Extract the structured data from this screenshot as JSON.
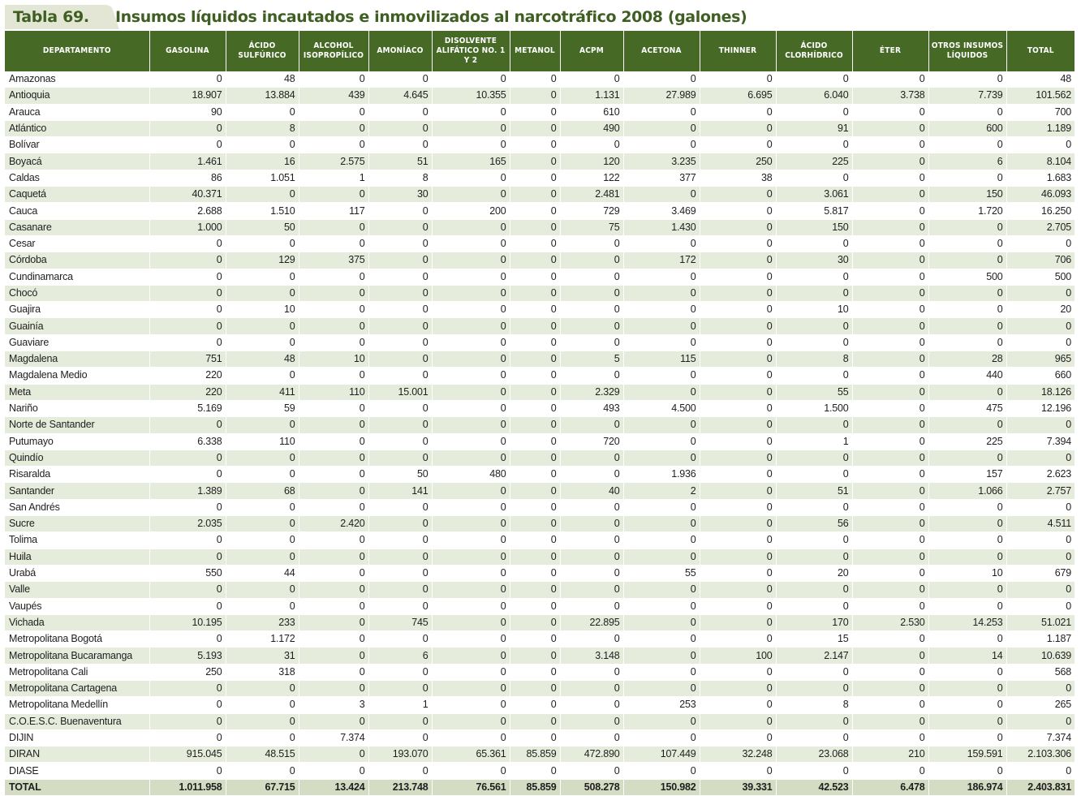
{
  "table_number": "Tabla 69.",
  "title": "Insumos líquidos incautados e inmovilizados al narcotráfico 2008 (galones)",
  "headers": [
    "DEPARTAMENTO",
    "GASOLINA",
    "ÁCIDO SULFÚRICO",
    "ALCOHOL ISOPROPÍLICO",
    "AMONÍACO",
    "DISOLVENTE ALIFÁTICO No. 1 Y 2",
    "METANOL",
    "ACPM",
    "ACETONA",
    "THINNER",
    "ÁCIDO CLORHÍDRICO",
    "ÉTER",
    "OTROS INSUMOS LÍQUIDOS",
    "TOTAL"
  ],
  "rows": [
    [
      "Amazonas",
      "0",
      "48",
      "0",
      "0",
      "0",
      "0",
      "0",
      "0",
      "0",
      "0",
      "0",
      "0",
      "48"
    ],
    [
      "Antioquia",
      "18.907",
      "13.884",
      "439",
      "4.645",
      "10.355",
      "0",
      "1.131",
      "27.989",
      "6.695",
      "6.040",
      "3.738",
      "7.739",
      "101.562"
    ],
    [
      "Arauca",
      "90",
      "0",
      "0",
      "0",
      "0",
      "0",
      "610",
      "0",
      "0",
      "0",
      "0",
      "0",
      "700"
    ],
    [
      "Atlántico",
      "0",
      "8",
      "0",
      "0",
      "0",
      "0",
      "490",
      "0",
      "0",
      "91",
      "0",
      "600",
      "1.189"
    ],
    [
      "Bolívar",
      "0",
      "0",
      "0",
      "0",
      "0",
      "0",
      "0",
      "0",
      "0",
      "0",
      "0",
      "0",
      "0"
    ],
    [
      "Boyacá",
      "1.461",
      "16",
      "2.575",
      "51",
      "165",
      "0",
      "120",
      "3.235",
      "250",
      "225",
      "0",
      "6",
      "8.104"
    ],
    [
      "Caldas",
      "86",
      "1.051",
      "1",
      "8",
      "0",
      "0",
      "122",
      "377",
      "38",
      "0",
      "0",
      "0",
      "1.683"
    ],
    [
      "Caquetá",
      "40.371",
      "0",
      "0",
      "30",
      "0",
      "0",
      "2.481",
      "0",
      "0",
      "3.061",
      "0",
      "150",
      "46.093"
    ],
    [
      "Cauca",
      "2.688",
      "1.510",
      "117",
      "0",
      "200",
      "0",
      "729",
      "3.469",
      "0",
      "5.817",
      "0",
      "1.720",
      "16.250"
    ],
    [
      "Casanare",
      "1.000",
      "50",
      "0",
      "0",
      "0",
      "0",
      "75",
      "1.430",
      "0",
      "150",
      "0",
      "0",
      "2.705"
    ],
    [
      "Cesar",
      "0",
      "0",
      "0",
      "0",
      "0",
      "0",
      "0",
      "0",
      "0",
      "0",
      "0",
      "0",
      "0"
    ],
    [
      "Córdoba",
      "0",
      "129",
      "375",
      "0",
      "0",
      "0",
      "0",
      "172",
      "0",
      "30",
      "0",
      "0",
      "706"
    ],
    [
      "Cundinamarca",
      "0",
      "0",
      "0",
      "0",
      "0",
      "0",
      "0",
      "0",
      "0",
      "0",
      "0",
      "500",
      "500"
    ],
    [
      "Chocó",
      "0",
      "0",
      "0",
      "0",
      "0",
      "0",
      "0",
      "0",
      "0",
      "0",
      "0",
      "0",
      "0"
    ],
    [
      "Guajira",
      "0",
      "10",
      "0",
      "0",
      "0",
      "0",
      "0",
      "0",
      "0",
      "10",
      "0",
      "0",
      "20"
    ],
    [
      "Guainía",
      "0",
      "0",
      "0",
      "0",
      "0",
      "0",
      "0",
      "0",
      "0",
      "0",
      "0",
      "0",
      "0"
    ],
    [
      "Guaviare",
      "0",
      "0",
      "0",
      "0",
      "0",
      "0",
      "0",
      "0",
      "0",
      "0",
      "0",
      "0",
      "0"
    ],
    [
      "Magdalena",
      "751",
      "48",
      "10",
      "0",
      "0",
      "0",
      "5",
      "115",
      "0",
      "8",
      "0",
      "28",
      "965"
    ],
    [
      "Magdalena Medio",
      "220",
      "0",
      "0",
      "0",
      "0",
      "0",
      "0",
      "0",
      "0",
      "0",
      "0",
      "440",
      "660"
    ],
    [
      "Meta",
      "220",
      "411",
      "110",
      "15.001",
      "0",
      "0",
      "2.329",
      "0",
      "0",
      "55",
      "0",
      "0",
      "18.126"
    ],
    [
      "Nariño",
      "5.169",
      "59",
      "0",
      "0",
      "0",
      "0",
      "493",
      "4.500",
      "0",
      "1.500",
      "0",
      "475",
      "12.196"
    ],
    [
      "Norte de Santander",
      "0",
      "0",
      "0",
      "0",
      "0",
      "0",
      "0",
      "0",
      "0",
      "0",
      "0",
      "0",
      "0"
    ],
    [
      "Putumayo",
      "6.338",
      "110",
      "0",
      "0",
      "0",
      "0",
      "720",
      "0",
      "0",
      "1",
      "0",
      "225",
      "7.394"
    ],
    [
      "Quindío",
      "0",
      "0",
      "0",
      "0",
      "0",
      "0",
      "0",
      "0",
      "0",
      "0",
      "0",
      "0",
      "0"
    ],
    [
      "Risaralda",
      "0",
      "0",
      "0",
      "50",
      "480",
      "0",
      "0",
      "1.936",
      "0",
      "0",
      "0",
      "157",
      "2.623"
    ],
    [
      "Santander",
      "1.389",
      "68",
      "0",
      "141",
      "0",
      "0",
      "40",
      "2",
      "0",
      "51",
      "0",
      "1.066",
      "2.757"
    ],
    [
      "San Andrés",
      "0",
      "0",
      "0",
      "0",
      "0",
      "0",
      "0",
      "0",
      "0",
      "0",
      "0",
      "0",
      "0"
    ],
    [
      "Sucre",
      "2.035",
      "0",
      "2.420",
      "0",
      "0",
      "0",
      "0",
      "0",
      "0",
      "56",
      "0",
      "0",
      "4.511"
    ],
    [
      "Tolima",
      "0",
      "0",
      "0",
      "0",
      "0",
      "0",
      "0",
      "0",
      "0",
      "0",
      "0",
      "0",
      "0"
    ],
    [
      "Huila",
      "0",
      "0",
      "0",
      "0",
      "0",
      "0",
      "0",
      "0",
      "0",
      "0",
      "0",
      "0",
      "0"
    ],
    [
      "Urabá",
      "550",
      "44",
      "0",
      "0",
      "0",
      "0",
      "0",
      "55",
      "0",
      "20",
      "0",
      "10",
      "679"
    ],
    [
      "Valle",
      "0",
      "0",
      "0",
      "0",
      "0",
      "0",
      "0",
      "0",
      "0",
      "0",
      "0",
      "0",
      "0"
    ],
    [
      "Vaupés",
      "0",
      "0",
      "0",
      "0",
      "0",
      "0",
      "0",
      "0",
      "0",
      "0",
      "0",
      "0",
      "0"
    ],
    [
      "Vichada",
      "10.195",
      "233",
      "0",
      "745",
      "0",
      "0",
      "22.895",
      "0",
      "0",
      "170",
      "2.530",
      "14.253",
      "51.021"
    ],
    [
      "Metropolitana Bogotá",
      "0",
      "1.172",
      "0",
      "0",
      "0",
      "0",
      "0",
      "0",
      "0",
      "15",
      "0",
      "0",
      "1.187"
    ],
    [
      "Metropolitana Bucaramanga",
      "5.193",
      "31",
      "0",
      "6",
      "0",
      "0",
      "3.148",
      "0",
      "100",
      "2.147",
      "0",
      "14",
      "10.639"
    ],
    [
      "Metropolitana Cali",
      "250",
      "318",
      "0",
      "0",
      "0",
      "0",
      "0",
      "0",
      "0",
      "0",
      "0",
      "0",
      "568"
    ],
    [
      "Metropolitana Cartagena",
      "0",
      "0",
      "0",
      "0",
      "0",
      "0",
      "0",
      "0",
      "0",
      "0",
      "0",
      "0",
      "0"
    ],
    [
      "Metropolitana Medellín",
      "0",
      "0",
      "3",
      "1",
      "0",
      "0",
      "0",
      "253",
      "0",
      "8",
      "0",
      "0",
      "265"
    ],
    [
      "C.O.E.S.C. Buenaventura",
      "0",
      "0",
      "0",
      "0",
      "0",
      "0",
      "0",
      "0",
      "0",
      "0",
      "0",
      "0",
      "0"
    ],
    [
      "DIJIN",
      "0",
      "0",
      "7.374",
      "0",
      "0",
      "0",
      "0",
      "0",
      "0",
      "0",
      "0",
      "0",
      "7.374"
    ],
    [
      "DIRAN",
      "915.045",
      "48.515",
      "0",
      "193.070",
      "65.361",
      "85.859",
      "472.890",
      "107.449",
      "32.248",
      "23.068",
      "210",
      "159.591",
      "2.103.306"
    ],
    [
      "DIASE",
      "0",
      "0",
      "0",
      "0",
      "0",
      "0",
      "0",
      "0",
      "0",
      "0",
      "0",
      "0",
      "0"
    ]
  ],
  "total_row": [
    "TOTAL",
    "1.011.958",
    "67.715",
    "13.424",
    "213.748",
    "76.561",
    "85.859",
    "508.278",
    "150.982",
    "39.331",
    "42.523",
    "6.478",
    "186.974",
    "2.403.831"
  ],
  "colors": {
    "header_bg": "#466a26",
    "title_text": "#3f5f22",
    "band_row": "#e6ecdc",
    "total_row": "#d4dcc4",
    "title_tab": "#e3e6d4"
  }
}
